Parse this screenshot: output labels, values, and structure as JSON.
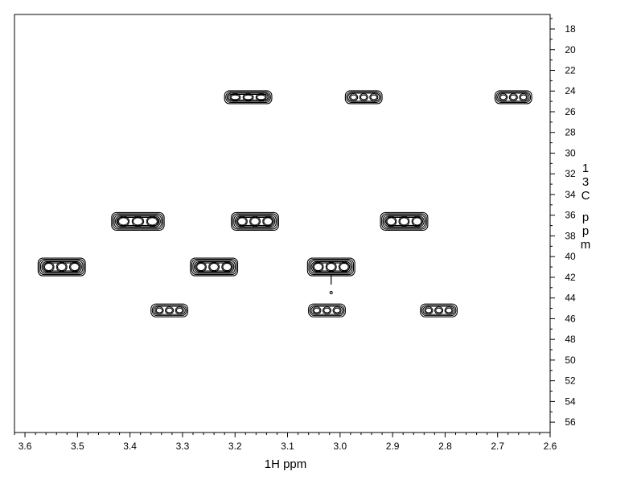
{
  "chart_data": {
    "type": "contour",
    "xlabel": "1H ppm",
    "ylabel": "13C ppm",
    "xlim": [
      3.62,
      2.6
    ],
    "ylim": [
      16.6,
      57.0
    ],
    "x_reversed": true,
    "y_direction": "increasing-downward",
    "x_ticks": [
      "3.6",
      "3.5",
      "3.4",
      "3.3",
      "3.2",
      "3.1",
      "3.0",
      "2.9",
      "2.8",
      "2.7",
      "2.6"
    ],
    "y_ticks": [
      "18",
      "20",
      "22",
      "24",
      "26",
      "28",
      "30",
      "32",
      "34",
      "36",
      "38",
      "40",
      "42",
      "44",
      "46",
      "48",
      "50",
      "52",
      "54",
      "56"
    ],
    "grid": false,
    "peaks": [
      {
        "x": 3.175,
        "y": 24.6,
        "width": 0.045,
        "intensity": "medium"
      },
      {
        "x": 2.955,
        "y": 24.6,
        "width": 0.035,
        "intensity": "weak"
      },
      {
        "x": 2.67,
        "y": 24.6,
        "width": 0.035,
        "intensity": "weak"
      },
      {
        "x": 3.385,
        "y": 36.6,
        "width": 0.05,
        "intensity": "strong"
      },
      {
        "x": 3.162,
        "y": 36.6,
        "width": 0.045,
        "intensity": "strong"
      },
      {
        "x": 2.878,
        "y": 36.6,
        "width": 0.045,
        "intensity": "strong"
      },
      {
        "x": 3.53,
        "y": 41.0,
        "width": 0.045,
        "intensity": "strong"
      },
      {
        "x": 3.24,
        "y": 41.0,
        "width": 0.045,
        "intensity": "strong"
      },
      {
        "x": 3.017,
        "y": 41.0,
        "width": 0.045,
        "intensity": "strong"
      },
      {
        "x": 3.325,
        "y": 45.2,
        "width": 0.035,
        "intensity": "weak"
      },
      {
        "x": 3.025,
        "y": 45.2,
        "width": 0.035,
        "intensity": "weak"
      },
      {
        "x": 2.812,
        "y": 45.2,
        "width": 0.035,
        "intensity": "weak"
      }
    ]
  },
  "colors": {
    "ink": "#000000",
    "background": "#ffffff"
  }
}
